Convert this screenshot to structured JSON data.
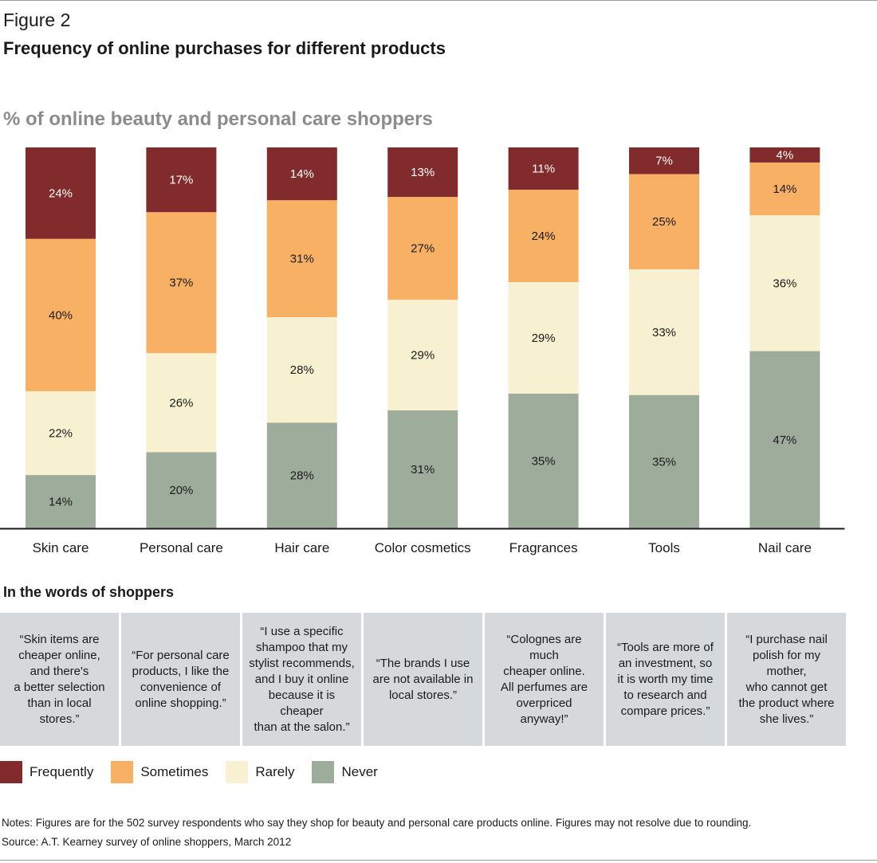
{
  "figure_label": "Figure 2",
  "figure_title": "Frequency of online purchases for different products",
  "chart_data": {
    "type": "bar",
    "stacked": true,
    "title": "% of online beauty and personal care shoppers",
    "categories": [
      "Skin care",
      "Personal care",
      "Hair care",
      "Color cosmetics",
      "Fragrances",
      "Tools",
      "Nail care"
    ],
    "series": [
      {
        "name": "Never",
        "color": "#9ead9b",
        "values": [
          14,
          20,
          28,
          31,
          35,
          35,
          47
        ]
      },
      {
        "name": "Rarely",
        "color": "#f8f1d1",
        "values": [
          22,
          26,
          28,
          29,
          29,
          33,
          36
        ]
      },
      {
        "name": "Sometimes",
        "color": "#f7b064",
        "values": [
          40,
          37,
          31,
          27,
          24,
          25,
          14
        ]
      },
      {
        "name": "Frequently",
        "color": "#822b2c",
        "values": [
          24,
          17,
          14,
          13,
          11,
          7,
          4
        ]
      }
    ],
    "value_suffix": "%",
    "ylim": [
      0,
      100
    ],
    "grid": false
  },
  "quotes": {
    "heading": "In the words of shoppers",
    "items": [
      "“Skin items are\ncheaper online,\nand there's\na better selection\nthan in local stores.”",
      "“For personal care\nproducts, I like the\nconvenience of\nonline shopping.”",
      "“I use a specific\nshampoo that my\nstylist recommends,\nand I buy it online\nbecause it is cheaper\nthan at the salon.”",
      "“The brands I use\nare not available in\nlocal stores.”",
      "“Colognes are much\ncheaper online.\nAll perfumes are\noverpriced anyway!”",
      "“Tools are more of\nan investment, so\nit is worth my time\nto research and\ncompare prices.”",
      "“I purchase nail\npolish for my mother,\nwho cannot get\nthe product where\nshe lives.”"
    ]
  },
  "legend": [
    {
      "label": "Frequently",
      "color": "#822b2c"
    },
    {
      "label": "Sometimes",
      "color": "#f7b064"
    },
    {
      "label": "Rarely",
      "color": "#f8f1d1"
    },
    {
      "label": "Never",
      "color": "#9ead9b"
    }
  ],
  "notes": "Notes: Figures are for the 502 survey respondents who say they shop for beauty and personal care products online. Figures may not resolve due to rounding.",
  "source": "Source: A.T. Kearney survey of online shoppers, March 2012"
}
